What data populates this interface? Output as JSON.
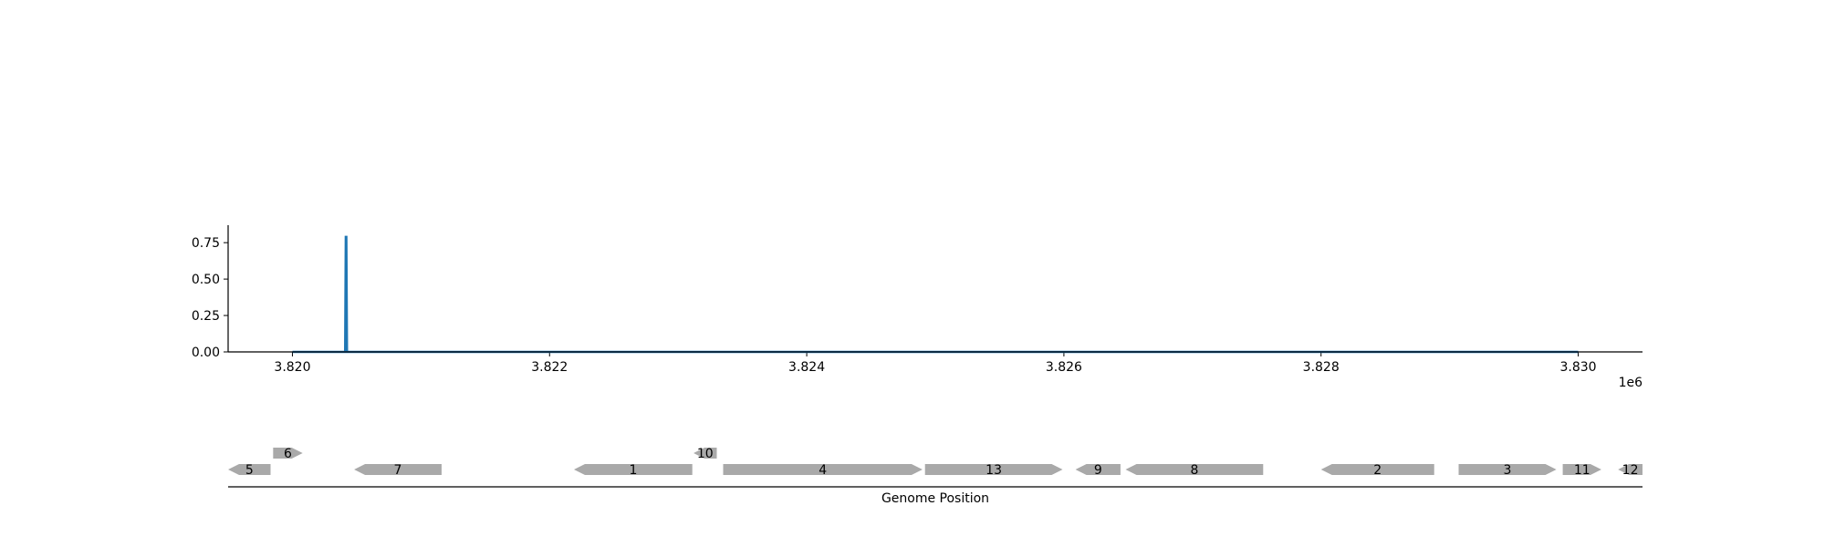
{
  "colors": {
    "signal": "#1f77b4",
    "gene": "#a9a9a9",
    "axis": "#000000",
    "background": "#ffffff"
  },
  "chart_data": [
    {
      "type": "line",
      "title": "",
      "xlabel": "",
      "ylabel": "",
      "offset_text": "1e6",
      "xlim": [
        3819500,
        3830500
      ],
      "ylim": [
        0,
        0.87
      ],
      "x_ticks": [
        3820000,
        3822000,
        3824000,
        3826000,
        3828000,
        3830000
      ],
      "x_tick_labels": [
        "3.820",
        "3.822",
        "3.824",
        "3.826",
        "3.828",
        "3.830"
      ],
      "y_ticks": [
        0,
        0.25,
        0.5,
        0.75
      ],
      "y_tick_labels": [
        "0.00",
        "0.25",
        "0.50",
        "0.75"
      ],
      "grid": false,
      "series": [
        {
          "x": [
            3820000,
            3820410,
            3820415,
            3820420,
            3820425,
            3830000
          ],
          "y": [
            0,
            0,
            0.79,
            0.79,
            0,
            0
          ]
        }
      ]
    },
    {
      "type": "gene-track",
      "xlabel": "Genome Position",
      "xlim": [
        3819500,
        3830500
      ],
      "genes": [
        {
          "label": "5",
          "start": 3819500,
          "end": 3819830,
          "strand": "-",
          "row": 0
        },
        {
          "label": "6",
          "start": 3819850,
          "end": 3820080,
          "strand": "+",
          "row": 1
        },
        {
          "label": "7",
          "start": 3820480,
          "end": 3821160,
          "strand": "-",
          "row": 0
        },
        {
          "label": "1",
          "start": 3822190,
          "end": 3823110,
          "strand": "-",
          "row": 0
        },
        {
          "label": "10",
          "start": 3823120,
          "end": 3823300,
          "strand": "-",
          "row": 1
        },
        {
          "label": "4",
          "start": 3823350,
          "end": 3824900,
          "strand": "+",
          "row": 0
        },
        {
          "label": "13",
          "start": 3824920,
          "end": 3825990,
          "strand": "+",
          "row": 0
        },
        {
          "label": "9",
          "start": 3826090,
          "end": 3826440,
          "strand": "-",
          "row": 0
        },
        {
          "label": "8",
          "start": 3826480,
          "end": 3827550,
          "strand": "-",
          "row": 0
        },
        {
          "label": "2",
          "start": 3828000,
          "end": 3828880,
          "strand": "-",
          "row": 0
        },
        {
          "label": "3",
          "start": 3829070,
          "end": 3829830,
          "strand": "+",
          "row": 0
        },
        {
          "label": "11",
          "start": 3829880,
          "end": 3830180,
          "strand": "+",
          "row": 0
        },
        {
          "label": "12",
          "start": 3830310,
          "end": 3830500,
          "strand": "-",
          "row": 0
        }
      ]
    }
  ]
}
